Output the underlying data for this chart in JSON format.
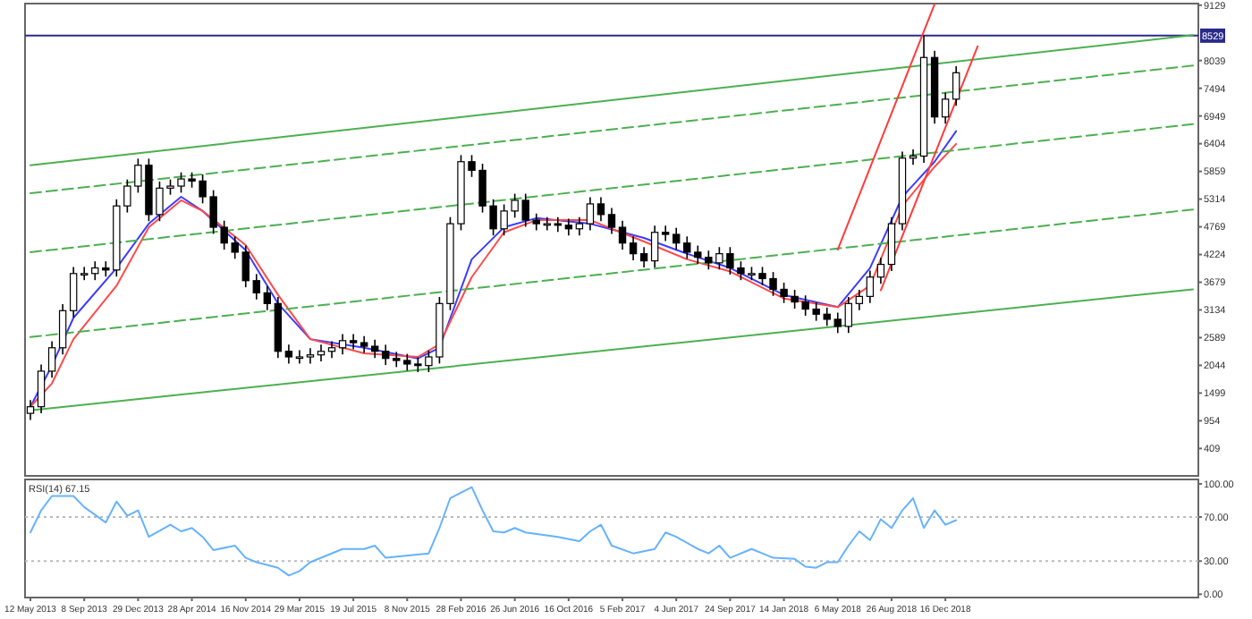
{
  "chart_data": [
    {
      "type": "candlestick",
      "ylim": [
        -130,
        9160
      ],
      "tick_labels": "y",
      "yticks": [
        409,
        954,
        1499,
        2044,
        2589,
        3134,
        3679,
        4224,
        4769,
        5314,
        5859,
        6404,
        6949,
        7494,
        8039,
        9129
      ],
      "color": "#000000",
      "categories": [
        null,
        null,
        null,
        null,
        null,
        null,
        null,
        null,
        null,
        null,
        null,
        null,
        null,
        null,
        null,
        null,
        null,
        null,
        null,
        null,
        null,
        null,
        null,
        null,
        null,
        null,
        null,
        null,
        null,
        null,
        null,
        null,
        null,
        null,
        null,
        null,
        null,
        null,
        null,
        null,
        null,
        null,
        null,
        null,
        null,
        null,
        null,
        null,
        null,
        null,
        null,
        null,
        null,
        null,
        null,
        null,
        null,
        null,
        null,
        null,
        null,
        null,
        null,
        null,
        null,
        null,
        null,
        null,
        null,
        null,
        null,
        null,
        null,
        null,
        null,
        null,
        null,
        null,
        null,
        null,
        null,
        null,
        null,
        null,
        null,
        null,
        null,
        null,
        null,
        null,
        null,
        null,
        null,
        null,
        null,
        null,
        null,
        null,
        null,
        null,
        null,
        null,
        null,
        null,
        null,
        null,
        null,
        null,
        null
      ],
      "ohlc": [
        [
          1100,
          1360,
          970,
          1230
        ],
        [
          1230,
          2060,
          1100,
          1930
        ],
        [
          1930,
          2520,
          1800,
          2390
        ],
        [
          2390,
          3250,
          2260,
          3120
        ],
        [
          3120,
          3980,
          2990,
          3850
        ],
        [
          3850,
          3980,
          3720,
          3850
        ],
        [
          3850,
          4090,
          3720,
          3960
        ],
        [
          3960,
          4090,
          3790,
          3920
        ],
        [
          3920,
          5310,
          3790,
          5180
        ],
        [
          5180,
          5700,
          5050,
          5570
        ],
        [
          5570,
          6110,
          5440,
          5980
        ],
        [
          5980,
          6110,
          4880,
          5010
        ],
        [
          5010,
          5660,
          4880,
          5530
        ],
        [
          5530,
          5700,
          5400,
          5570
        ],
        [
          5570,
          5840,
          5440,
          5710
        ],
        [
          5710,
          5840,
          5540,
          5670
        ],
        [
          5670,
          5800,
          5230,
          5360
        ],
        [
          5360,
          5490,
          4630,
          4760
        ],
        [
          4760,
          4890,
          4320,
          4450
        ],
        [
          4450,
          4580,
          4140,
          4270
        ],
        [
          4270,
          4400,
          3580,
          3710
        ],
        [
          3710,
          3840,
          3340,
          3470
        ],
        [
          3470,
          3600,
          3130,
          3260
        ],
        [
          3260,
          3390,
          2190,
          2320
        ],
        [
          2320,
          2450,
          2080,
          2210
        ],
        [
          2210,
          2340,
          2080,
          2210
        ],
        [
          2210,
          2380,
          2080,
          2250
        ],
        [
          2250,
          2450,
          2120,
          2320
        ],
        [
          2320,
          2520,
          2190,
          2390
        ],
        [
          2390,
          2660,
          2260,
          2530
        ],
        [
          2530,
          2660,
          2360,
          2490
        ],
        [
          2490,
          2620,
          2290,
          2420
        ],
        [
          2420,
          2550,
          2190,
          2320
        ],
        [
          2320,
          2450,
          2050,
          2180
        ],
        [
          2180,
          2310,
          2010,
          2140
        ],
        [
          2140,
          2270,
          1940,
          2070
        ],
        [
          2070,
          2200,
          1910,
          2040
        ],
        [
          2040,
          2340,
          1910,
          2210
        ],
        [
          2210,
          3390,
          2080,
          3260
        ],
        [
          3260,
          4960,
          3130,
          4830
        ],
        [
          4830,
          6180,
          4700,
          6050
        ],
        [
          6050,
          6180,
          5750,
          5880
        ],
        [
          5880,
          6010,
          5050,
          5180
        ],
        [
          5180,
          5310,
          4600,
          4730
        ],
        [
          4730,
          5210,
          4600,
          5080
        ],
        [
          5080,
          5420,
          4950,
          5290
        ],
        [
          5290,
          5420,
          4770,
          4900
        ],
        [
          4900,
          5030,
          4700,
          4830
        ],
        [
          4830,
          4960,
          4700,
          4830
        ],
        [
          4830,
          4960,
          4670,
          4800
        ],
        [
          4800,
          4930,
          4600,
          4730
        ],
        [
          4730,
          4960,
          4600,
          4830
        ],
        [
          4830,
          5350,
          4700,
          5220
        ],
        [
          5220,
          5350,
          4880,
          5010
        ],
        [
          5010,
          5140,
          4630,
          4760
        ],
        [
          4760,
          4890,
          4320,
          4450
        ],
        [
          4450,
          4580,
          4110,
          4240
        ],
        [
          4240,
          4370,
          3970,
          4100
        ],
        [
          4100,
          4790,
          3970,
          4660
        ],
        [
          4660,
          4790,
          4490,
          4620
        ],
        [
          4620,
          4750,
          4320,
          4450
        ],
        [
          4450,
          4580,
          4140,
          4270
        ],
        [
          4270,
          4400,
          4040,
          4170
        ],
        [
          4170,
          4300,
          3930,
          4060
        ],
        [
          4060,
          4370,
          3930,
          4240
        ],
        [
          4240,
          4370,
          3830,
          3960
        ],
        [
          3960,
          4090,
          3720,
          3850
        ],
        [
          3850,
          3980,
          3720,
          3850
        ],
        [
          3850,
          3980,
          3620,
          3750
        ],
        [
          3750,
          3880,
          3410,
          3540
        ],
        [
          3540,
          3670,
          3270,
          3400
        ],
        [
          3400,
          3530,
          3160,
          3290
        ],
        [
          3290,
          3420,
          3020,
          3150
        ],
        [
          3150,
          3280,
          2920,
          3050
        ],
        [
          3050,
          3180,
          2820,
          2950
        ],
        [
          2950,
          3080,
          2680,
          2810
        ],
        [
          2810,
          3390,
          2680,
          3260
        ],
        [
          3260,
          3530,
          3130,
          3400
        ],
        [
          3400,
          3910,
          3270,
          3780
        ],
        [
          3780,
          4160,
          3650,
          4030
        ],
        [
          4030,
          4960,
          3900,
          4830
        ],
        [
          4830,
          6250,
          4700,
          6120
        ],
        [
          6120,
          6290,
          5990,
          6160
        ],
        [
          6160,
          8529,
          6030,
          8100
        ],
        [
          8100,
          8230,
          6800,
          6930
        ],
        [
          6930,
          7410,
          6800,
          7280
        ],
        [
          7280,
          7930,
          7150,
          7800
        ],
        null,
        null,
        null,
        null,
        null,
        null,
        null,
        null,
        null,
        null,
        null,
        null,
        null,
        null,
        null,
        null,
        null,
        null,
        null,
        null,
        null,
        null
      ],
      "series": [
        {
          "type": "line",
          "color": "#3c3cff",
          "values": [
            1230,
            null,
            2040,
            null,
            2980,
            null,
            null,
            null,
            3960,
            null,
            null,
            4830,
            null,
            null,
            5360,
            null,
            5080,
            null,
            null,
            null,
            4310,
            null,
            null,
            3260,
            null,
            null,
            2560,
            null,
            null,
            null,
            null,
            2390,
            null,
            null,
            null,
            null,
            2180,
            null,
            2390,
            null,
            null,
            4130,
            null,
            null,
            4760,
            null,
            null,
            4940,
            null,
            null,
            null,
            null,
            4830,
            null,
            null,
            null,
            null,
            4550,
            null,
            null,
            null,
            4240,
            null,
            null,
            null,
            3960,
            null,
            null,
            null,
            null,
            3430,
            null,
            null,
            null,
            null,
            3190,
            null,
            null,
            3960,
            null,
            null,
            5360,
            null,
            null,
            6050,
            null,
            6650,
            null,
            null,
            null,
            null,
            null,
            null,
            null,
            null,
            null,
            null,
            null,
            null,
            null,
            null,
            null,
            null,
            null,
            null,
            null,
            null,
            null,
            null
          ]
        },
        {
          "type": "line",
          "color": "#ff4a4a",
          "values": [
            1230,
            null,
            1690,
            null,
            2560,
            null,
            null,
            null,
            3610,
            null,
            null,
            4760,
            null,
            null,
            5290,
            null,
            5080,
            null,
            null,
            null,
            4410,
            null,
            null,
            3430,
            null,
            null,
            2560,
            null,
            null,
            null,
            null,
            2280,
            null,
            null,
            null,
            null,
            2210,
            null,
            2460,
            null,
            null,
            3780,
            null,
            null,
            4660,
            null,
            null,
            4900,
            null,
            null,
            null,
            null,
            4900,
            null,
            null,
            null,
            null,
            4480,
            null,
            null,
            null,
            4130,
            null,
            null,
            null,
            3890,
            null,
            null,
            null,
            null,
            3360,
            null,
            null,
            null,
            null,
            3190,
            null,
            null,
            3610,
            null,
            null,
            5180,
            null,
            null,
            5950,
            null,
            6400,
            null,
            null,
            null,
            null,
            null,
            null,
            null,
            null,
            null,
            null,
            null,
            null,
            null,
            null,
            null,
            null,
            null,
            null,
            null,
            null,
            null,
            null
          ]
        },
        {
          "type": "line",
          "color": "#4cb050",
          "line_style": "solid",
          "values": [
            5980,
            null,
            null,
            null,
            null,
            null,
            null,
            null,
            null,
            null,
            null,
            null,
            null,
            null,
            null,
            null,
            null,
            null,
            null,
            null,
            null,
            null,
            null,
            null,
            null,
            null,
            null,
            null,
            null,
            null,
            null,
            null,
            null,
            null,
            null,
            null,
            null,
            null,
            null,
            null,
            null,
            null,
            null,
            null,
            null,
            null,
            null,
            null,
            null,
            null,
            null,
            null,
            null,
            null,
            null,
            null,
            null,
            null,
            null,
            null,
            null,
            null,
            null,
            null,
            null,
            null,
            null,
            null,
            null,
            null,
            null,
            null,
            null,
            null,
            null,
            null,
            null,
            null,
            null,
            null,
            null,
            null,
            null,
            null,
            null,
            null,
            null,
            null,
            null,
            null,
            null,
            null,
            null,
            null,
            null,
            null,
            null,
            null,
            null,
            null,
            null,
            null,
            null,
            null,
            null,
            null,
            null,
            null,
            8540
          ]
        },
        {
          "type": "line",
          "color": "#4cb050",
          "line_style": "dashed",
          "values": [
            5430,
            null,
            null,
            null,
            null,
            null,
            null,
            null,
            null,
            null,
            null,
            null,
            null,
            null,
            null,
            null,
            null,
            null,
            null,
            null,
            null,
            null,
            null,
            null,
            null,
            null,
            null,
            null,
            null,
            null,
            null,
            null,
            null,
            null,
            null,
            null,
            null,
            null,
            null,
            null,
            null,
            null,
            null,
            null,
            null,
            null,
            null,
            null,
            null,
            null,
            null,
            null,
            null,
            null,
            null,
            null,
            null,
            null,
            null,
            null,
            null,
            null,
            null,
            null,
            null,
            null,
            null,
            null,
            null,
            null,
            null,
            null,
            null,
            null,
            null,
            null,
            null,
            null,
            null,
            null,
            null,
            null,
            null,
            null,
            null,
            null,
            null,
            null,
            null,
            null,
            null,
            null,
            null,
            null,
            null,
            null,
            null,
            null,
            null,
            null,
            null,
            null,
            null,
            null,
            null,
            null,
            null,
            null,
            7940
          ]
        },
        {
          "type": "line",
          "color": "#4cb050",
          "line_style": "dashed",
          "values": [
            4270,
            null,
            null,
            null,
            null,
            null,
            null,
            null,
            null,
            null,
            null,
            null,
            null,
            null,
            null,
            null,
            null,
            null,
            null,
            null,
            null,
            null,
            null,
            null,
            null,
            null,
            null,
            null,
            null,
            null,
            null,
            null,
            null,
            null,
            null,
            null,
            null,
            null,
            null,
            null,
            null,
            null,
            null,
            null,
            null,
            null,
            null,
            null,
            null,
            null,
            null,
            null,
            null,
            null,
            null,
            null,
            null,
            null,
            null,
            null,
            null,
            null,
            null,
            null,
            null,
            null,
            null,
            null,
            null,
            null,
            null,
            null,
            null,
            null,
            null,
            null,
            null,
            null,
            null,
            null,
            null,
            null,
            null,
            null,
            null,
            null,
            null,
            null,
            null,
            null,
            null,
            null,
            null,
            null,
            null,
            null,
            null,
            null,
            null,
            null,
            null,
            null,
            null,
            null,
            null,
            null,
            null,
            null,
            6790
          ]
        },
        {
          "type": "line",
          "color": "#4cb050",
          "line_style": "dashed",
          "values": [
            2600,
            null,
            null,
            null,
            null,
            null,
            null,
            null,
            null,
            null,
            null,
            null,
            null,
            null,
            null,
            null,
            null,
            null,
            null,
            null,
            null,
            null,
            null,
            null,
            null,
            null,
            null,
            null,
            null,
            null,
            null,
            null,
            null,
            null,
            null,
            null,
            null,
            null,
            null,
            null,
            null,
            null,
            null,
            null,
            null,
            null,
            null,
            null,
            null,
            null,
            null,
            null,
            null,
            null,
            null,
            null,
            null,
            null,
            null,
            null,
            null,
            null,
            null,
            null,
            null,
            null,
            null,
            null,
            null,
            null,
            null,
            null,
            null,
            null,
            null,
            null,
            null,
            null,
            null,
            null,
            null,
            null,
            null,
            null,
            null,
            null,
            null,
            null,
            null,
            null,
            null,
            null,
            null,
            null,
            null,
            null,
            null,
            null,
            null,
            null,
            null,
            null,
            null,
            null,
            null,
            null,
            null,
            null,
            5110
          ]
        },
        {
          "type": "line",
          "color": "#4cb050",
          "line_style": "solid",
          "values": [
            1160,
            null,
            null,
            null,
            null,
            null,
            null,
            null,
            null,
            null,
            null,
            null,
            null,
            null,
            null,
            null,
            null,
            null,
            null,
            null,
            null,
            null,
            null,
            null,
            null,
            null,
            null,
            null,
            null,
            null,
            null,
            null,
            null,
            null,
            null,
            null,
            null,
            null,
            null,
            null,
            null,
            null,
            null,
            null,
            null,
            null,
            null,
            null,
            null,
            null,
            null,
            null,
            null,
            null,
            null,
            null,
            null,
            null,
            null,
            null,
            null,
            null,
            null,
            null,
            null,
            null,
            null,
            null,
            null,
            null,
            null,
            null,
            null,
            null,
            null,
            null,
            null,
            null,
            null,
            null,
            null,
            null,
            null,
            null,
            null,
            null,
            null,
            null,
            null,
            null,
            null,
            null,
            null,
            null,
            null,
            null,
            null,
            null,
            null,
            null,
            null,
            null,
            null,
            null,
            null,
            null,
            null,
            null,
            3540
          ]
        },
        {
          "type": "line",
          "color": "#ff3b3b",
          "values": [
            null,
            null,
            null,
            null,
            null,
            null,
            null,
            null,
            null,
            null,
            null,
            null,
            null,
            null,
            null,
            null,
            null,
            null,
            null,
            null,
            null,
            null,
            null,
            null,
            null,
            null,
            null,
            null,
            null,
            null,
            null,
            null,
            null,
            null,
            null,
            null,
            null,
            null,
            null,
            null,
            null,
            null,
            null,
            null,
            null,
            null,
            null,
            null,
            null,
            null,
            null,
            null,
            null,
            null,
            null,
            null,
            null,
            null,
            null,
            null,
            null,
            null,
            null,
            null,
            null,
            null,
            null,
            null,
            null,
            null,
            null,
            null,
            null,
            null,
            null,
            4320,
            null,
            null,
            null,
            null,
            null,
            null,
            null,
            null,
            9150,
            null,
            null,
            null,
            null,
            null,
            null,
            null,
            null,
            null,
            null,
            null,
            null,
            null,
            null,
            null,
            null,
            null,
            null,
            null,
            null,
            null,
            null,
            null,
            null
          ]
        },
        {
          "type": "line",
          "color": "#ff3b3b",
          "values": [
            null,
            null,
            null,
            null,
            null,
            null,
            null,
            null,
            null,
            null,
            null,
            null,
            null,
            null,
            null,
            null,
            null,
            null,
            null,
            null,
            null,
            null,
            null,
            null,
            null,
            null,
            null,
            null,
            null,
            null,
            null,
            null,
            null,
            null,
            null,
            null,
            null,
            null,
            null,
            null,
            null,
            null,
            null,
            null,
            null,
            null,
            null,
            null,
            null,
            null,
            null,
            null,
            null,
            null,
            null,
            null,
            null,
            null,
            null,
            null,
            null,
            null,
            null,
            null,
            null,
            null,
            null,
            null,
            null,
            null,
            null,
            null,
            null,
            null,
            null,
            null,
            null,
            null,
            null,
            3520,
            null,
            null,
            null,
            null,
            null,
            null,
            null,
            null,
            8320,
            null,
            null,
            null,
            null,
            null,
            null,
            null,
            null,
            null,
            null,
            null,
            null,
            null,
            null,
            null,
            null,
            null,
            null,
            null,
            null
          ]
        }
      ],
      "ref_lines": [
        {
          "axis": "y",
          "value": 8529,
          "label": "8529",
          "color": "#2a2a8c"
        }
      ]
    },
    {
      "type": "line",
      "title": "RSI(14) 67.15",
      "ylim": [
        -3,
        104
      ],
      "yticks": [
        {
          "value": 0,
          "label": "0.00"
        },
        {
          "value": 30,
          "label": "30.00"
        },
        {
          "value": 70,
          "label": "70.00"
        },
        {
          "value": 100,
          "label": "100.00"
        }
      ],
      "categories": [
        "12 May 2013",
        null,
        null,
        null,
        null,
        "8 Sep 2013",
        null,
        null,
        null,
        null,
        "29 Dec 2013",
        null,
        null,
        null,
        null,
        "28 Apr 2014",
        null,
        null,
        null,
        null,
        "16 Nov 2014",
        null,
        null,
        null,
        null,
        "29 Mar 2015",
        null,
        null,
        null,
        null,
        "19 Jul 2015",
        null,
        null,
        null,
        null,
        "8 Nov 2015",
        null,
        null,
        null,
        null,
        "28 Feb 2016",
        null,
        null,
        null,
        null,
        "26 Jun 2016",
        null,
        null,
        null,
        null,
        "16 Oct 2016",
        null,
        null,
        null,
        null,
        "5 Feb 2017",
        null,
        null,
        null,
        null,
        "4 Jun 2017",
        null,
        null,
        null,
        null,
        "24 Sep 2017",
        null,
        null,
        null,
        null,
        "14 Jan 2018",
        null,
        null,
        null,
        null,
        "6 May 2018",
        null,
        null,
        null,
        null,
        "26 Aug 2018",
        null,
        null,
        null,
        null,
        "16 Dec 2018",
        null,
        null,
        null,
        null,
        null,
        null,
        null,
        null,
        null,
        null,
        null,
        null,
        null,
        null,
        null,
        null,
        null,
        null,
        null,
        null,
        null,
        null,
        null
      ],
      "series": [
        {
          "color": "#66b2ff",
          "values": [
            56,
            76,
            89,
            null,
            89,
            79,
            null,
            65,
            84,
            71,
            76,
            52,
            null,
            63,
            57,
            60,
            52,
            40,
            null,
            44,
            33,
            29,
            null,
            24,
            17,
            21,
            29,
            null,
            null,
            41,
            null,
            41,
            44,
            33,
            null,
            null,
            null,
            37,
            60,
            87,
            null,
            97,
            76,
            57,
            56,
            60,
            56,
            null,
            null,
            52,
            null,
            48,
            57,
            63,
            44,
            null,
            37,
            null,
            41,
            56,
            52,
            null,
            41,
            37,
            44,
            33,
            null,
            41,
            37,
            33,
            null,
            32,
            25,
            24,
            29,
            29,
            44,
            57,
            49,
            68,
            60,
            76,
            87,
            60,
            76,
            63,
            67.15,
            null,
            null,
            null,
            null,
            null,
            null,
            null,
            null,
            null,
            null,
            null,
            null,
            null,
            null,
            null,
            null,
            null,
            null,
            null,
            null,
            null,
            null
          ]
        }
      ],
      "ref_lines": [
        {
          "axis": "y",
          "value": 70,
          "color": "#bbbbbb",
          "line_style": "dotted"
        },
        {
          "axis": "y",
          "value": 30,
          "color": "#bbbbbb",
          "line_style": "dotted"
        }
      ]
    }
  ]
}
